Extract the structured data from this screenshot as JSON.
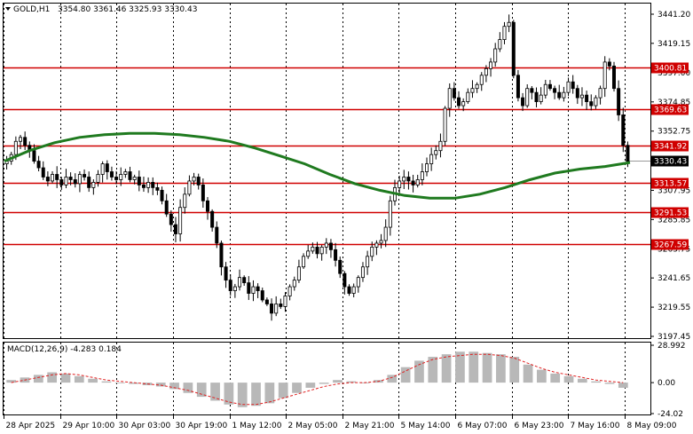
{
  "header": {
    "symbol": "GOLD,H1",
    "ohlc": "3354.80 3361.46 3325.93 3330.43"
  },
  "macd_header": "MACD(12,26,9) -4.283 0.184",
  "colors": {
    "bull_candle": "#ffffff",
    "bear_candle": "#000000",
    "level_line": "#d00000",
    "ma_line": "#1f7a1f",
    "macd_hist": "#b8b8b8",
    "signal_line": "#e02020",
    "current_tag": "#000000"
  },
  "chart_data": [
    {
      "type": "candlestick",
      "title": "GOLD,H1",
      "y_ticks": [
        "3441.20",
        "3419.15",
        "3397.00",
        "3374.85",
        "3352.75",
        "3330.43",
        "3307.95",
        "3285.85",
        "3263.75",
        "3241.65",
        "3219.55",
        "3197.45"
      ],
      "ylim": [
        3197.45,
        3441.2
      ],
      "x_ticks": [
        "28 Apr 2025",
        "29 Apr 10:00",
        "30 Apr 03:00",
        "30 Apr 19:00",
        "1 May 12:00",
        "2 May 05:00",
        "2 May 21:00",
        "5 May 14:00",
        "6 May 07:00",
        "6 May 23:00",
        "7 May 16:00",
        "8 May 09:00"
      ],
      "levels": [
        {
          "label": "3400.81",
          "value": 3400.81
        },
        {
          "label": "3369.63",
          "value": 3369.63
        },
        {
          "label": "3341.92",
          "value": 3341.92
        },
        {
          "label": "3313.57",
          "value": 3313.57
        },
        {
          "label": "3291.53",
          "value": 3291.53
        },
        {
          "label": "3267.59",
          "value": 3267.59
        }
      ],
      "current_price": {
        "label": "3330.43",
        "value": 3330.43
      },
      "closes": [
        3330,
        3335,
        3345,
        3348,
        3342,
        3338,
        3330,
        3325,
        3318,
        3315,
        3320,
        3316,
        3312,
        3318,
        3316,
        3313,
        3320,
        3318,
        3310,
        3314,
        3320,
        3328,
        3322,
        3318,
        3316,
        3320,
        3322,
        3316,
        3318,
        3312,
        3310,
        3314,
        3310,
        3308,
        3300,
        3290,
        3282,
        3275,
        3295,
        3305,
        3315,
        3318,
        3312,
        3300,
        3292,
        3280,
        3268,
        3250,
        3240,
        3232,
        3235,
        3242,
        3238,
        3230,
        3235,
        3232,
        3225,
        3222,
        3215,
        3222,
        3220,
        3228,
        3235,
        3240,
        3250,
        3258,
        3262,
        3265,
        3260,
        3265,
        3268,
        3263,
        3255,
        3245,
        3235,
        3230,
        3235,
        3242,
        3250,
        3258,
        3265,
        3268,
        3270,
        3280,
        3300,
        3310,
        3315,
        3318,
        3315,
        3312,
        3316,
        3322,
        3328,
        3335,
        3338,
        3345,
        3370,
        3385,
        3378,
        3372,
        3375,
        3382,
        3385,
        3388,
        3395,
        3400,
        3405,
        3415,
        3422,
        3432,
        3435,
        3395,
        3378,
        3372,
        3385,
        3382,
        3375,
        3380,
        3388,
        3385,
        3382,
        3378,
        3382,
        3390,
        3385,
        3378,
        3380,
        3375,
        3372,
        3378,
        3385,
        3405,
        3402,
        3385,
        3365,
        3342,
        3330
      ],
      "ma_values": [
        3330,
        3338,
        3344,
        3348,
        3350,
        3351,
        3351,
        3350,
        3348,
        3345,
        3340,
        3334,
        3328,
        3320,
        3313,
        3308,
        3304,
        3302,
        3302,
        3305,
        3310,
        3316,
        3321,
        3324,
        3326,
        3329
      ],
      "series": [
        {
          "name": "MACD",
          "values": [
            2,
            4,
            6,
            8,
            7,
            5,
            3,
            1,
            0,
            -1,
            -2,
            -3,
            -5,
            -8,
            -11,
            -14,
            -17,
            -19,
            -18,
            -16,
            -12,
            -8,
            -4,
            -1,
            2,
            1,
            0,
            2,
            6,
            12,
            17,
            20,
            22,
            24,
            24,
            23,
            22,
            20,
            14,
            10,
            7,
            5,
            3,
            1,
            -1,
            -4
          ]
        },
        {
          "name": "Signal",
          "values": [
            0,
            2,
            4,
            6,
            7,
            6,
            4,
            2,
            1,
            0,
            -1,
            -2,
            -4,
            -6,
            -9,
            -12,
            -15,
            -17,
            -17,
            -15,
            -12,
            -9,
            -6,
            -3,
            -1,
            0,
            0,
            1,
            4,
            9,
            14,
            18,
            20,
            21,
            22,
            22,
            21,
            19,
            15,
            11,
            8,
            6,
            4,
            2,
            1,
            0
          ]
        }
      ],
      "macd_ticks": [
        "28.992",
        "0.00",
        "-24.02"
      ],
      "macd_ylim": [
        -24.02,
        28.992
      ]
    }
  ]
}
